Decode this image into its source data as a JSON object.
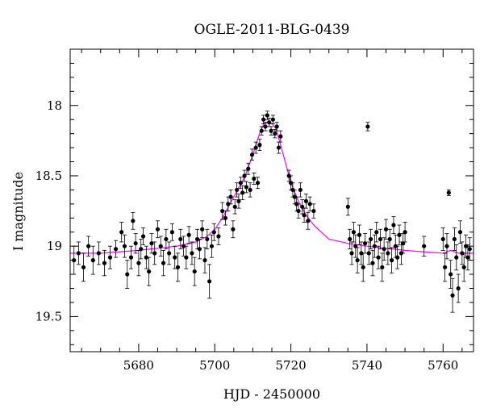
{
  "chart_data": {
    "type": "scatter",
    "title": "OGLE-2011-BLG-0439",
    "xlabel": "HJD - 2450000",
    "ylabel": "I magnitude",
    "xlim": [
      5662,
      5768
    ],
    "ylim": [
      19.75,
      17.6
    ],
    "y_inverted": true,
    "grid": false,
    "x_major_ticks": [
      5680,
      5700,
      5720,
      5740,
      5760
    ],
    "x_minor_step": 5,
    "y_major_ticks": [
      18,
      18.5,
      19,
      19.5
    ],
    "y_minor_step": 0.1,
    "colors": {
      "model": "#ff00ff",
      "points": "#000000"
    },
    "model_curve": {
      "name": "",
      "x": [
        5662,
        5670,
        5680,
        5690,
        5695,
        5698,
        5700,
        5702,
        5704,
        5706,
        5708,
        5710,
        5712,
        5713,
        5714,
        5715,
        5716,
        5717,
        5718,
        5719,
        5720,
        5722,
        5724,
        5726,
        5728,
        5730,
        5735,
        5740,
        5750,
        5760,
        5761,
        5762,
        5763,
        5764,
        5768
      ],
      "y": [
        19.05,
        19.05,
        19.03,
        19.0,
        18.97,
        18.93,
        18.88,
        18.8,
        18.7,
        18.6,
        18.5,
        18.35,
        18.18,
        18.13,
        18.12,
        18.13,
        18.16,
        18.25,
        18.35,
        18.45,
        18.55,
        18.68,
        18.78,
        18.85,
        18.9,
        18.95,
        18.98,
        19.0,
        19.03,
        19.05,
        19.04,
        19.03,
        19.04,
        19.05,
        19.05
      ]
    },
    "series": [
      {
        "name": "",
        "points": [
          [
            5663.0,
            19.1,
            0.1
          ],
          [
            5664.2,
            19.05,
            0.08
          ],
          [
            5665.5,
            19.15,
            0.1
          ],
          [
            5666.8,
            19.0,
            0.07
          ],
          [
            5668.0,
            19.1,
            0.1
          ],
          [
            5669.5,
            19.05,
            0.08
          ],
          [
            5671.0,
            19.12,
            0.09
          ],
          [
            5672.5,
            19.08,
            0.08
          ],
          [
            5674.0,
            19.02,
            0.06
          ],
          [
            5675.5,
            18.9,
            0.07
          ],
          [
            5676.3,
            19.0,
            0.08
          ],
          [
            5677.0,
            19.2,
            0.1
          ],
          [
            5678.0,
            19.08,
            0.08
          ],
          [
            5678.5,
            18.82,
            0.06
          ],
          [
            5679.2,
            18.98,
            0.07
          ],
          [
            5680.0,
            19.12,
            0.09
          ],
          [
            5680.6,
            19.02,
            0.07
          ],
          [
            5681.2,
            18.93,
            0.06
          ],
          [
            5682.0,
            19.08,
            0.08
          ],
          [
            5682.7,
            19.18,
            0.1
          ],
          [
            5683.4,
            18.98,
            0.07
          ],
          [
            5684.2,
            19.05,
            0.08
          ],
          [
            5685.0,
            18.88,
            0.06
          ],
          [
            5685.8,
            19.0,
            0.07
          ],
          [
            5686.5,
            19.12,
            0.09
          ],
          [
            5687.2,
            18.95,
            0.07
          ],
          [
            5688.0,
            19.05,
            0.08
          ],
          [
            5688.8,
            18.9,
            0.06
          ],
          [
            5689.5,
            19.08,
            0.08
          ],
          [
            5690.3,
            19.15,
            0.1
          ],
          [
            5691.0,
            18.95,
            0.07
          ],
          [
            5691.8,
            19.0,
            0.07
          ],
          [
            5692.5,
            19.08,
            0.08
          ],
          [
            5693.2,
            18.92,
            0.06
          ],
          [
            5694.0,
            19.05,
            0.08
          ],
          [
            5694.7,
            19.18,
            0.1
          ],
          [
            5695.4,
            18.95,
            0.07
          ],
          [
            5696.0,
            19.02,
            0.07
          ],
          [
            5696.7,
            18.88,
            0.06
          ],
          [
            5697.4,
            19.1,
            0.09
          ],
          [
            5698.0,
            18.95,
            0.07
          ],
          [
            5698.6,
            19.25,
            0.12
          ],
          [
            5699.2,
            19.0,
            0.08
          ],
          [
            5699.8,
            18.9,
            0.06
          ],
          [
            5701.0,
            18.93,
            0.06
          ],
          [
            5702.0,
            18.75,
            0.06
          ],
          [
            5702.8,
            18.8,
            0.05
          ],
          [
            5703.5,
            18.7,
            0.05
          ],
          [
            5704.2,
            18.65,
            0.05
          ],
          [
            5704.8,
            18.88,
            0.06
          ],
          [
            5705.3,
            18.72,
            0.05
          ],
          [
            5705.8,
            18.6,
            0.05
          ],
          [
            5706.3,
            18.68,
            0.05
          ],
          [
            5706.8,
            18.55,
            0.04
          ],
          [
            5707.3,
            18.62,
            0.05
          ],
          [
            5707.8,
            18.5,
            0.04
          ],
          [
            5708.3,
            18.58,
            0.04
          ],
          [
            5708.8,
            18.45,
            0.04
          ],
          [
            5709.3,
            18.6,
            0.05
          ],
          [
            5709.8,
            18.35,
            0.04
          ],
          [
            5710.3,
            18.52,
            0.04
          ],
          [
            5710.8,
            18.3,
            0.04
          ],
          [
            5711.3,
            18.55,
            0.04
          ],
          [
            5711.8,
            18.28,
            0.04
          ],
          [
            5712.3,
            18.18,
            0.03
          ],
          [
            5712.8,
            18.1,
            0.03
          ],
          [
            5713.3,
            18.15,
            0.03
          ],
          [
            5713.8,
            18.07,
            0.03
          ],
          [
            5714.3,
            18.12,
            0.03
          ],
          [
            5714.8,
            18.18,
            0.03
          ],
          [
            5715.3,
            18.1,
            0.03
          ],
          [
            5715.8,
            18.2,
            0.03
          ],
          [
            5716.3,
            18.15,
            0.03
          ],
          [
            5716.8,
            18.3,
            0.04
          ],
          [
            5717.3,
            18.22,
            0.04
          ],
          [
            5719.5,
            18.5,
            0.04
          ],
          [
            5720.0,
            18.55,
            0.05
          ],
          [
            5720.5,
            18.6,
            0.05
          ],
          [
            5721.0,
            18.65,
            0.05
          ],
          [
            5721.5,
            18.7,
            0.05
          ],
          [
            5722.0,
            18.75,
            0.05
          ],
          [
            5722.5,
            18.6,
            0.05
          ],
          [
            5723.0,
            18.72,
            0.05
          ],
          [
            5723.5,
            18.78,
            0.05
          ],
          [
            5724.0,
            18.68,
            0.05
          ],
          [
            5724.5,
            18.82,
            0.06
          ],
          [
            5725.0,
            18.7,
            0.05
          ],
          [
            5726.0,
            18.75,
            0.05
          ],
          [
            5735.0,
            18.72,
            0.06
          ],
          [
            5735.5,
            18.95,
            0.07
          ],
          [
            5736.0,
            19.05,
            0.08
          ],
          [
            5736.5,
            18.9,
            0.07
          ],
          [
            5737.0,
            19.0,
            0.08
          ],
          [
            5737.5,
            19.1,
            0.09
          ],
          [
            5738.0,
            18.92,
            0.07
          ],
          [
            5738.5,
            19.05,
            0.08
          ],
          [
            5739.0,
            19.15,
            0.1
          ],
          [
            5739.5,
            18.98,
            0.07
          ],
          [
            5740.2,
            18.15,
            0.03
          ],
          [
            5740.5,
            19.05,
            0.08
          ],
          [
            5741.0,
            18.95,
            0.07
          ],
          [
            5741.5,
            19.12,
            0.09
          ],
          [
            5742.0,
            19.0,
            0.08
          ],
          [
            5742.5,
            18.9,
            0.07
          ],
          [
            5743.0,
            19.08,
            0.08
          ],
          [
            5743.5,
            18.95,
            0.07
          ],
          [
            5744.0,
            19.15,
            0.1
          ],
          [
            5744.5,
            19.02,
            0.08
          ],
          [
            5745.0,
            18.88,
            0.07
          ],
          [
            5745.5,
            19.05,
            0.08
          ],
          [
            5746.0,
            18.95,
            0.07
          ],
          [
            5746.5,
            19.1,
            0.09
          ],
          [
            5747.0,
            18.85,
            0.06
          ],
          [
            5747.5,
            19.0,
            0.08
          ],
          [
            5748.0,
            19.08,
            0.08
          ],
          [
            5748.5,
            18.92,
            0.07
          ],
          [
            5749.0,
            19.05,
            0.08
          ],
          [
            5749.5,
            18.98,
            0.07
          ],
          [
            5750.0,
            18.9,
            0.07
          ],
          [
            5755.0,
            19.0,
            0.07
          ],
          [
            5760.0,
            18.95,
            0.08
          ],
          [
            5760.5,
            19.15,
            0.1
          ],
          [
            5761.0,
            19.0,
            0.09
          ],
          [
            5761.5,
            18.62,
            0.02
          ],
          [
            5762.0,
            19.2,
            0.1
          ],
          [
            5762.5,
            19.35,
            0.12
          ],
          [
            5763.0,
            18.95,
            0.08
          ],
          [
            5763.5,
            19.08,
            0.09
          ],
          [
            5764.0,
            19.3,
            0.1
          ],
          [
            5764.5,
            18.9,
            0.08
          ],
          [
            5765.0,
            19.05,
            0.08
          ],
          [
            5765.5,
            19.15,
            0.1
          ],
          [
            5766.0,
            19.0,
            0.08
          ],
          [
            5766.5,
            19.08,
            0.09
          ],
          [
            5767.0,
            19.02,
            0.08
          ]
        ]
      }
    ]
  }
}
